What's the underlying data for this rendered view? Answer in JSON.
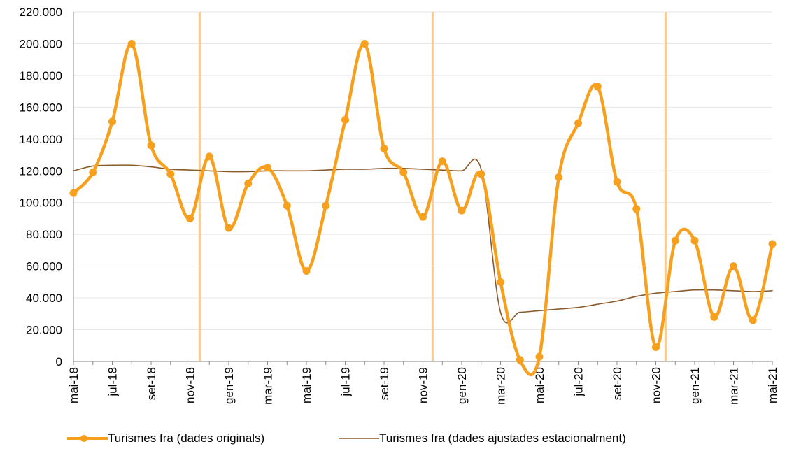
{
  "chart_data": {
    "type": "line",
    "title": "",
    "xlabel": "",
    "ylabel": "",
    "ylim": [
      0,
      220000
    ],
    "yticks": [
      "0",
      "20.000",
      "40.000",
      "60.000",
      "80.000",
      "100.000",
      "120.000",
      "140.000",
      "160.000",
      "180.000",
      "200.000",
      "220.000"
    ],
    "ytick_values": [
      0,
      20000,
      40000,
      60000,
      80000,
      100000,
      120000,
      140000,
      160000,
      180000,
      200000,
      220000
    ],
    "x": [
      "mai-18",
      "jun-18",
      "jul-18",
      "ago-18",
      "set-18",
      "oct-18",
      "nov-18",
      "des-18",
      "gen-19",
      "feb-19",
      "mar-19",
      "abr-19",
      "mai-19",
      "jun-19",
      "jul-19",
      "ago-19",
      "set-19",
      "oct-19",
      "nov-19",
      "des-19",
      "gen-20",
      "feb-20",
      "mar-20",
      "abr-20",
      "mai-20",
      "jun-20",
      "jul-20",
      "ago-20",
      "set-20",
      "oct-20",
      "nov-20",
      "des-20",
      "gen-21",
      "feb-21",
      "mar-21",
      "abr-21",
      "mai-21"
    ],
    "xtick_labels": [
      "mai-18",
      "jul-18",
      "set-18",
      "nov-18",
      "gen-19",
      "mar-19",
      "mai-19",
      "jul-19",
      "set-19",
      "nov-19",
      "gen-20",
      "mar-20",
      "mai-20",
      "jul-20",
      "set-20",
      "nov-20",
      "gen-21",
      "mar-21",
      "mai-21"
    ],
    "year_separators_after": [
      "nov-18",
      "nov-19",
      "nov-20"
    ],
    "grid": "horizontal",
    "legend_position": "bottom",
    "series": [
      {
        "name": "Turismes fra (dades originals)",
        "color": "#F7A01E",
        "markers": true,
        "values": [
          106000,
          119000,
          151000,
          200000,
          136000,
          118000,
          90000,
          129000,
          84000,
          112000,
          122000,
          98000,
          57000,
          98000,
          152000,
          200000,
          134000,
          119000,
          91000,
          126000,
          95000,
          118000,
          50000,
          1000,
          3000,
          116000,
          150000,
          173000,
          113000,
          96000,
          9000,
          76000,
          76000,
          28000,
          60000,
          26000,
          74000
        ]
      },
      {
        "name": "Turismes fra (dades ajustades estacionalment)",
        "color": "#8B5A2B",
        "markers": false,
        "values": [
          120000,
          123000,
          123500,
          123500,
          122500,
          121000,
          120500,
          120000,
          119500,
          119500,
          120000,
          120000,
          120000,
          120500,
          121000,
          121000,
          121500,
          121500,
          121000,
          120500,
          120000,
          121000,
          31000,
          31000,
          32000,
          33000,
          34000,
          36000,
          38000,
          41000,
          43000,
          44000,
          45000,
          45000,
          44500,
          44000,
          44500
        ]
      }
    ]
  }
}
